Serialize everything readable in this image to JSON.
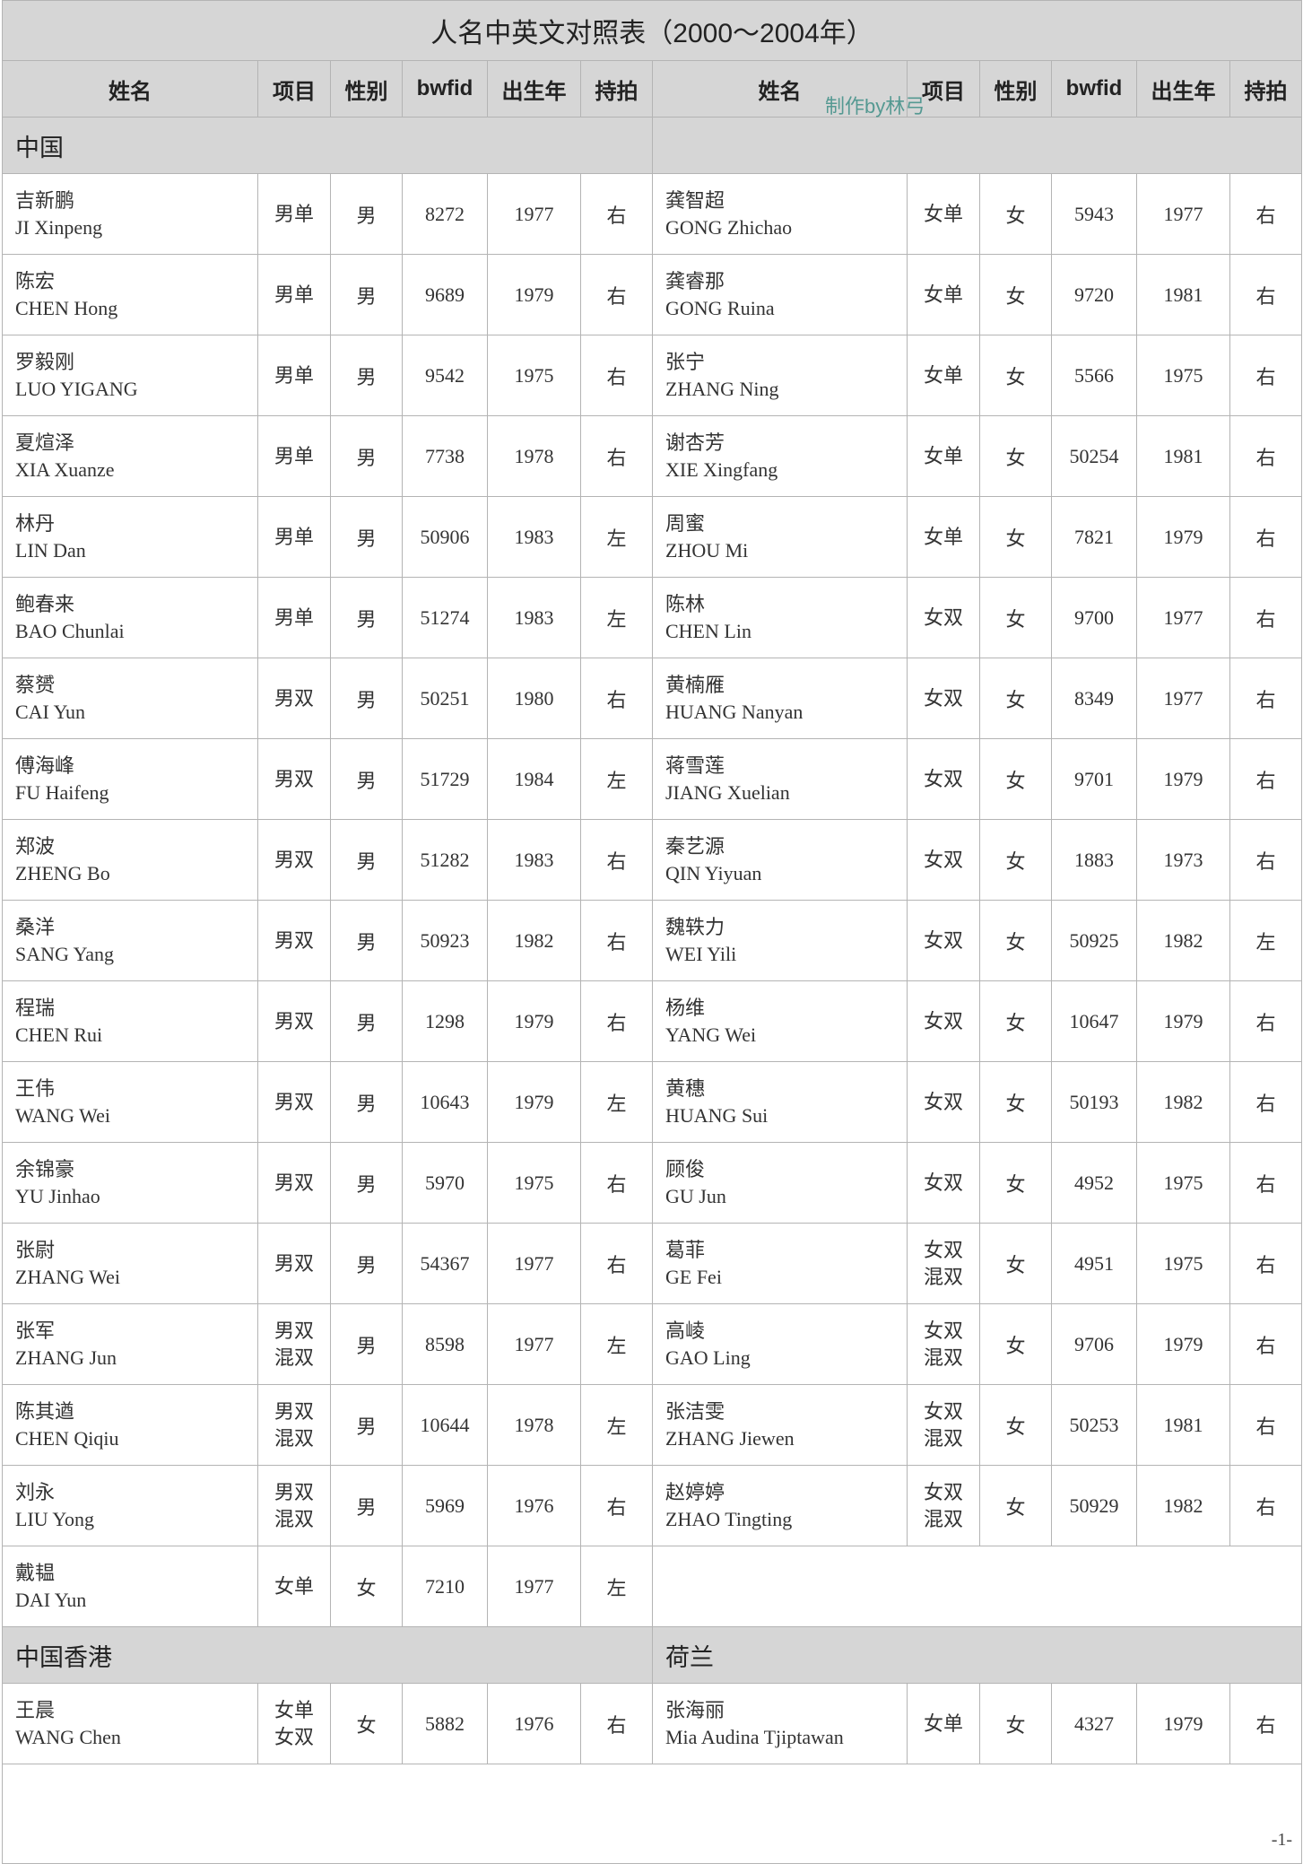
{
  "title": "人名中英文对照表（2000～2004年）",
  "watermark": "制作by林弓",
  "page_number": "-1-",
  "headers": [
    "姓名",
    "项目",
    "性别",
    "bwfid",
    "出生年",
    "持拍"
  ],
  "sections": [
    {
      "left_label": "中国",
      "right_label": "",
      "rows": [
        {
          "left": {
            "zh": "吉新鹏",
            "en": "JI Xinpeng",
            "event": [
              "男单"
            ],
            "gender": "男",
            "bwfid": "8272",
            "year": "1977",
            "hand": "右"
          },
          "right": {
            "zh": "龚智超",
            "en": "GONG Zhichao",
            "event": [
              "女单"
            ],
            "gender": "女",
            "bwfid": "5943",
            "year": "1977",
            "hand": "右"
          }
        },
        {
          "left": {
            "zh": "陈宏",
            "en": "CHEN Hong",
            "event": [
              "男单"
            ],
            "gender": "男",
            "bwfid": "9689",
            "year": "1979",
            "hand": "右"
          },
          "right": {
            "zh": "龚睿那",
            "en": "GONG Ruina",
            "event": [
              "女单"
            ],
            "gender": "女",
            "bwfid": "9720",
            "year": "1981",
            "hand": "右"
          }
        },
        {
          "left": {
            "zh": "罗毅刚",
            "en": "LUO YIGANG",
            "event": [
              "男单"
            ],
            "gender": "男",
            "bwfid": "9542",
            "year": "1975",
            "hand": "右"
          },
          "right": {
            "zh": "张宁",
            "en": "ZHANG Ning",
            "event": [
              "女单"
            ],
            "gender": "女",
            "bwfid": "5566",
            "year": "1975",
            "hand": "右"
          }
        },
        {
          "left": {
            "zh": "夏煊泽",
            "en": "XIA Xuanze",
            "event": [
              "男单"
            ],
            "gender": "男",
            "bwfid": "7738",
            "year": "1978",
            "hand": "右"
          },
          "right": {
            "zh": "谢杏芳",
            "en": "XIE Xingfang",
            "event": [
              "女单"
            ],
            "gender": "女",
            "bwfid": "50254",
            "year": "1981",
            "hand": "右"
          }
        },
        {
          "left": {
            "zh": "林丹",
            "en": "LIN Dan",
            "event": [
              "男单"
            ],
            "gender": "男",
            "bwfid": "50906",
            "year": "1983",
            "hand": "左"
          },
          "right": {
            "zh": "周蜜",
            "en": "ZHOU Mi",
            "event": [
              "女单"
            ],
            "gender": "女",
            "bwfid": "7821",
            "year": "1979",
            "hand": "右"
          }
        },
        {
          "left": {
            "zh": "鲍春来",
            "en": "BAO Chunlai",
            "event": [
              "男单"
            ],
            "gender": "男",
            "bwfid": "51274",
            "year": "1983",
            "hand": "左"
          },
          "right": {
            "zh": "陈林",
            "en": "CHEN Lin",
            "event": [
              "女双"
            ],
            "gender": "女",
            "bwfid": "9700",
            "year": "1977",
            "hand": "右"
          }
        },
        {
          "left": {
            "zh": "蔡赟",
            "en": "CAI Yun",
            "event": [
              "男双"
            ],
            "gender": "男",
            "bwfid": "50251",
            "year": "1980",
            "hand": "右"
          },
          "right": {
            "zh": "黄楠雁",
            "en": "HUANG Nanyan",
            "event": [
              "女双"
            ],
            "gender": "女",
            "bwfid": "8349",
            "year": "1977",
            "hand": "右"
          }
        },
        {
          "left": {
            "zh": "傅海峰",
            "en": "FU Haifeng",
            "event": [
              "男双"
            ],
            "gender": "男",
            "bwfid": "51729",
            "year": "1984",
            "hand": "左"
          },
          "right": {
            "zh": "蒋雪莲",
            "en": "JIANG Xuelian",
            "event": [
              "女双"
            ],
            "gender": "女",
            "bwfid": "9701",
            "year": "1979",
            "hand": "右"
          }
        },
        {
          "left": {
            "zh": "郑波",
            "en": "ZHENG Bo",
            "event": [
              "男双"
            ],
            "gender": "男",
            "bwfid": "51282",
            "year": "1983",
            "hand": "右"
          },
          "right": {
            "zh": "秦艺源",
            "en": "QIN Yiyuan",
            "event": [
              "女双"
            ],
            "gender": "女",
            "bwfid": "1883",
            "year": "1973",
            "hand": "右"
          }
        },
        {
          "left": {
            "zh": "桑洋",
            "en": "SANG Yang",
            "event": [
              "男双"
            ],
            "gender": "男",
            "bwfid": "50923",
            "year": "1982",
            "hand": "右"
          },
          "right": {
            "zh": "魏轶力",
            "en": "WEI Yili",
            "event": [
              "女双"
            ],
            "gender": "女",
            "bwfid": "50925",
            "year": "1982",
            "hand": "左"
          }
        },
        {
          "left": {
            "zh": "程瑞",
            "en": "CHEN Rui",
            "event": [
              "男双"
            ],
            "gender": "男",
            "bwfid": "1298",
            "year": "1979",
            "hand": "右"
          },
          "right": {
            "zh": "杨维",
            "en": "YANG Wei",
            "event": [
              "女双"
            ],
            "gender": "女",
            "bwfid": "10647",
            "year": "1979",
            "hand": "右"
          }
        },
        {
          "left": {
            "zh": "王伟",
            "en": "WANG Wei",
            "event": [
              "男双"
            ],
            "gender": "男",
            "bwfid": "10643",
            "year": "1979",
            "hand": "左"
          },
          "right": {
            "zh": "黄穗",
            "en": "HUANG Sui",
            "event": [
              "女双"
            ],
            "gender": "女",
            "bwfid": "50193",
            "year": "1982",
            "hand": "右"
          }
        },
        {
          "left": {
            "zh": "余锦豪",
            "en": "YU Jinhao",
            "event": [
              "男双"
            ],
            "gender": "男",
            "bwfid": "5970",
            "year": "1975",
            "hand": "右"
          },
          "right": {
            "zh": "顾俊",
            "en": "GU Jun",
            "event": [
              "女双"
            ],
            "gender": "女",
            "bwfid": "4952",
            "year": "1975",
            "hand": "右"
          }
        },
        {
          "left": {
            "zh": "张尉",
            "en": "ZHANG Wei",
            "event": [
              "男双"
            ],
            "gender": "男",
            "bwfid": "54367",
            "year": "1977",
            "hand": "右"
          },
          "right": {
            "zh": "葛菲",
            "en": "GE Fei",
            "event": [
              "女双",
              "混双"
            ],
            "gender": "女",
            "bwfid": "4951",
            "year": "1975",
            "hand": "右"
          }
        },
        {
          "left": {
            "zh": "张军",
            "en": "ZHANG Jun",
            "event": [
              "男双",
              "混双"
            ],
            "gender": "男",
            "bwfid": "8598",
            "year": "1977",
            "hand": "左"
          },
          "right": {
            "zh": "高崚",
            "en": "GAO Ling",
            "event": [
              "女双",
              "混双"
            ],
            "gender": "女",
            "bwfid": "9706",
            "year": "1979",
            "hand": "右"
          }
        },
        {
          "left": {
            "zh": "陈其遒",
            "en": "CHEN Qiqiu",
            "event": [
              "男双",
              "混双"
            ],
            "gender": "男",
            "bwfid": "10644",
            "year": "1978",
            "hand": "左"
          },
          "right": {
            "zh": "张洁雯",
            "en": "ZHANG Jiewen",
            "event": [
              "女双",
              "混双"
            ],
            "gender": "女",
            "bwfid": "50253",
            "year": "1981",
            "hand": "右"
          }
        },
        {
          "left": {
            "zh": "刘永",
            "en": "LIU Yong",
            "event": [
              "男双",
              "混双"
            ],
            "gender": "男",
            "bwfid": "5969",
            "year": "1976",
            "hand": "右"
          },
          "right": {
            "zh": "赵婷婷",
            "en": "ZHAO Tingting",
            "event": [
              "女双",
              "混双"
            ],
            "gender": "女",
            "bwfid": "50929",
            "year": "1982",
            "hand": "右"
          }
        },
        {
          "left": {
            "zh": "戴韫",
            "en": "DAI Yun",
            "event": [
              "女单"
            ],
            "gender": "女",
            "bwfid": "7210",
            "year": "1977",
            "hand": "左"
          },
          "right": null
        }
      ]
    },
    {
      "left_label": "中国香港",
      "right_label": "荷兰",
      "rows": [
        {
          "left": {
            "zh": "王晨",
            "en": "WANG Chen",
            "event": [
              "女单",
              "女双"
            ],
            "gender": "女",
            "bwfid": "5882",
            "year": "1976",
            "hand": "右"
          },
          "right": {
            "zh": "张海丽",
            "en": "Mia Audina Tjiptawan",
            "event": [
              "女单"
            ],
            "gender": "女",
            "bwfid": "4327",
            "year": "1979",
            "hand": "右"
          }
        }
      ]
    }
  ]
}
